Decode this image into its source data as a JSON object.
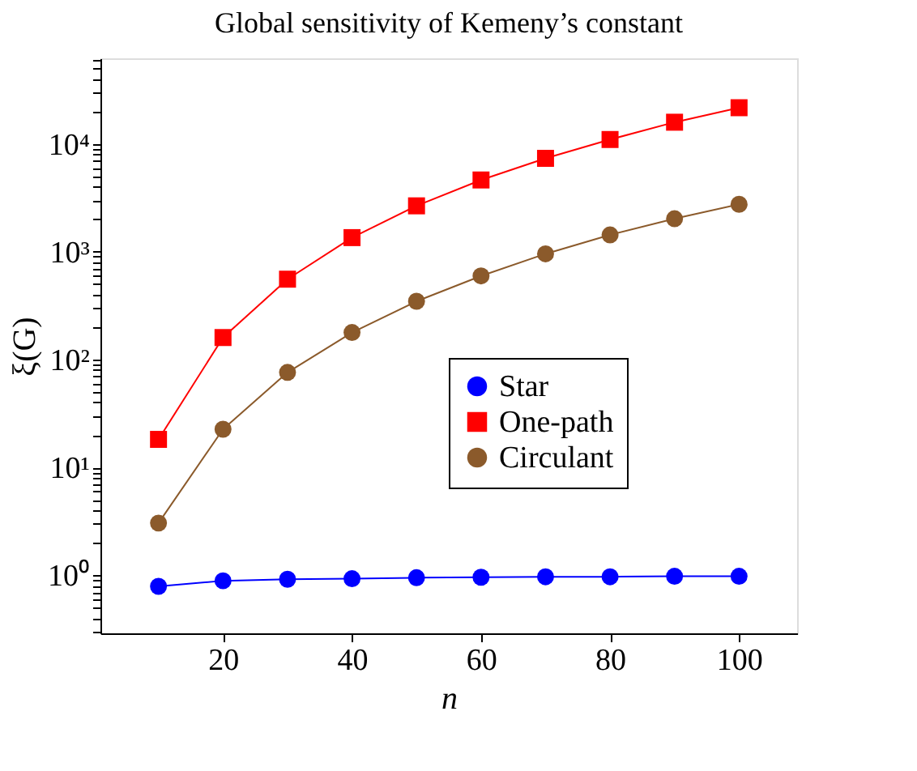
{
  "chart_data": {
    "type": "line",
    "title": "Global sensitivity of Kemeny’s constant",
    "xlabel": "n",
    "ylabel": "ξ(G)",
    "x": [
      10,
      20,
      30,
      40,
      50,
      60,
      70,
      80,
      90,
      100
    ],
    "series": [
      {
        "name": "Star",
        "color": "#0000ff",
        "marker": "circle",
        "values": [
          0.79,
          0.89,
          0.92,
          0.93,
          0.95,
          0.96,
          0.97,
          0.97,
          0.98,
          0.98
        ]
      },
      {
        "name": "One-path",
        "color": "#ff0000",
        "marker": "square",
        "values": [
          18.2,
          160,
          556,
          1350,
          2660,
          4620,
          7330,
          10960,
          15850,
          21600
        ]
      },
      {
        "name": "Circulant",
        "color": "#8b5a2b",
        "marker": "circle",
        "values": [
          3.05,
          22.6,
          76,
          178,
          347,
          596,
          955,
          1430,
          2020,
          2750
        ]
      }
    ],
    "log": "y",
    "xlim": [
      1,
      109
    ],
    "ylim": [
      0.29,
      62000
    ],
    "xticks": [
      20,
      40,
      60,
      80,
      100
    ],
    "yticks": [
      {
        "value": 0.3,
        "label": null
      },
      {
        "value": 0.4,
        "label": null
      },
      {
        "value": 0.5,
        "label": null
      },
      {
        "value": 0.6,
        "label": null
      },
      {
        "value": 0.7,
        "label": null
      },
      {
        "value": 0.8,
        "label": null
      },
      {
        "value": 0.9,
        "label": null
      },
      {
        "value": 1,
        "label": "10⁰"
      },
      {
        "value": 2,
        "label": null
      },
      {
        "value": 3,
        "label": null
      },
      {
        "value": 4,
        "label": null
      },
      {
        "value": 5,
        "label": null
      },
      {
        "value": 6,
        "label": null
      },
      {
        "value": 7,
        "label": null
      },
      {
        "value": 8,
        "label": null
      },
      {
        "value": 9,
        "label": null
      },
      {
        "value": 10,
        "label": "10¹"
      },
      {
        "value": 20,
        "label": null
      },
      {
        "value": 30,
        "label": null
      },
      {
        "value": 40,
        "label": null
      },
      {
        "value": 50,
        "label": null
      },
      {
        "value": 60,
        "label": null
      },
      {
        "value": 70,
        "label": null
      },
      {
        "value": 80,
        "label": null
      },
      {
        "value": 90,
        "label": null
      },
      {
        "value": 100,
        "label": "10²"
      },
      {
        "value": 200,
        "label": null
      },
      {
        "value": 300,
        "label": null
      },
      {
        "value": 400,
        "label": null
      },
      {
        "value": 500,
        "label": null
      },
      {
        "value": 600,
        "label": null
      },
      {
        "value": 700,
        "label": null
      },
      {
        "value": 800,
        "label": null
      },
      {
        "value": 900,
        "label": null
      },
      {
        "value": 1000,
        "label": "10³"
      },
      {
        "value": 2000,
        "label": null
      },
      {
        "value": 3000,
        "label": null
      },
      {
        "value": 4000,
        "label": null
      },
      {
        "value": 5000,
        "label": null
      },
      {
        "value": 6000,
        "label": null
      },
      {
        "value": 7000,
        "label": null
      },
      {
        "value": 8000,
        "label": null
      },
      {
        "value": 9000,
        "label": null
      },
      {
        "value": 10000,
        "label": "10⁴"
      },
      {
        "value": 20000,
        "label": null
      },
      {
        "value": 30000,
        "label": null
      },
      {
        "value": 40000,
        "label": null
      },
      {
        "value": 50000,
        "label": null
      },
      {
        "value": 60000,
        "label": null
      }
    ],
    "grid": false,
    "legend": "bottom right",
    "line_style": "solid"
  }
}
